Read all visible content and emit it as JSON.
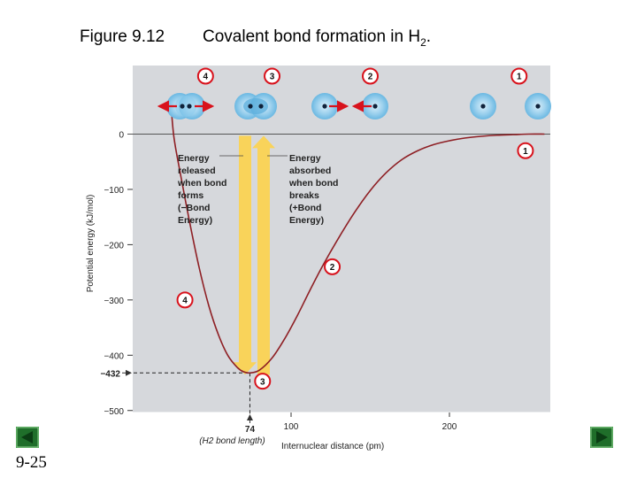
{
  "header": {
    "figure_label": "Figure 9.12",
    "caption_main": "Covalent bond formation in H",
    "caption_sub": "2",
    "caption_end": "."
  },
  "slide": {
    "number": "9-25"
  },
  "nav": {
    "prev_label": "previous slide",
    "next_label": "next slide"
  },
  "colors": {
    "plot_bg": "#d6d8dc",
    "curve": "#8e1f24",
    "marker": "#d8121c",
    "arrow_fill": "#fcd24e",
    "atom_glow": "#7cc2e8"
  },
  "chart_data": {
    "type": "line",
    "title": "Covalent bond formation in H2",
    "xlabel": "Internuclear distance (pm)",
    "ylabel": "Potential energy (kJ/mol)",
    "xlim": [
      0,
      260
    ],
    "ylim": [
      -500,
      60
    ],
    "x_ticks": [
      "100",
      "200"
    ],
    "x_tick_values": [
      100,
      200
    ],
    "y_ticks": [
      "0",
      "−100",
      "−200",
      "−300",
      "−400",
      "−500"
    ],
    "y_tick_values": [
      0,
      -100,
      -200,
      -300,
      -400,
      -500
    ],
    "minimum": {
      "x": 74,
      "y": -432,
      "x_label": "74",
      "y_label": "−432",
      "x_note": "(H2 bond length)"
    },
    "curve": [
      {
        "x": 24,
        "y": 60
      },
      {
        "x": 26,
        "y": -5
      },
      {
        "x": 30,
        "y": -70
      },
      {
        "x": 36,
        "y": -160
      },
      {
        "x": 42,
        "y": -242
      },
      {
        "x": 48,
        "y": -310
      },
      {
        "x": 54,
        "y": -362
      },
      {
        "x": 60,
        "y": -400
      },
      {
        "x": 66,
        "y": -422
      },
      {
        "x": 70,
        "y": -430
      },
      {
        "x": 74,
        "y": -432
      },
      {
        "x": 80,
        "y": -427
      },
      {
        "x": 88,
        "y": -405
      },
      {
        "x": 96,
        "y": -370
      },
      {
        "x": 104,
        "y": -328
      },
      {
        "x": 112,
        "y": -282
      },
      {
        "x": 120,
        "y": -238
      },
      {
        "x": 130,
        "y": -188
      },
      {
        "x": 140,
        "y": -142
      },
      {
        "x": 150,
        "y": -102
      },
      {
        "x": 160,
        "y": -70
      },
      {
        "x": 170,
        "y": -46
      },
      {
        "x": 180,
        "y": -30
      },
      {
        "x": 190,
        "y": -19
      },
      {
        "x": 200,
        "y": -12
      },
      {
        "x": 210,
        "y": -7
      },
      {
        "x": 220,
        "y": -4
      },
      {
        "x": 230,
        "y": -2
      },
      {
        "x": 240,
        "y": -1
      },
      {
        "x": 250,
        "y": 0
      },
      {
        "x": 260,
        "y": 0
      }
    ],
    "annotations": {
      "released": [
        "Energy",
        "released",
        "when bond",
        "forms",
        "(−Bond",
        "Energy)"
      ],
      "absorbed": [
        "Energy",
        "absorbed",
        "when bond",
        "breaks",
        "(+Bond",
        "Energy)"
      ]
    },
    "curve_markers": [
      {
        "label": "1",
        "x": 248,
        "y": -30
      },
      {
        "label": "2",
        "x": 126,
        "y": -240
      },
      {
        "label": "3",
        "x": 82,
        "y": -447
      },
      {
        "label": "4",
        "x": 33,
        "y": -300
      }
    ],
    "stages": [
      {
        "label": "4",
        "x": 46,
        "separation": "overlapping, repelling"
      },
      {
        "label": "3",
        "x": 88,
        "separation": "bonded"
      },
      {
        "label": "2",
        "x": 150,
        "separation": "attracting"
      },
      {
        "label": "1",
        "x": 244,
        "separation": "far apart"
      }
    ]
  }
}
